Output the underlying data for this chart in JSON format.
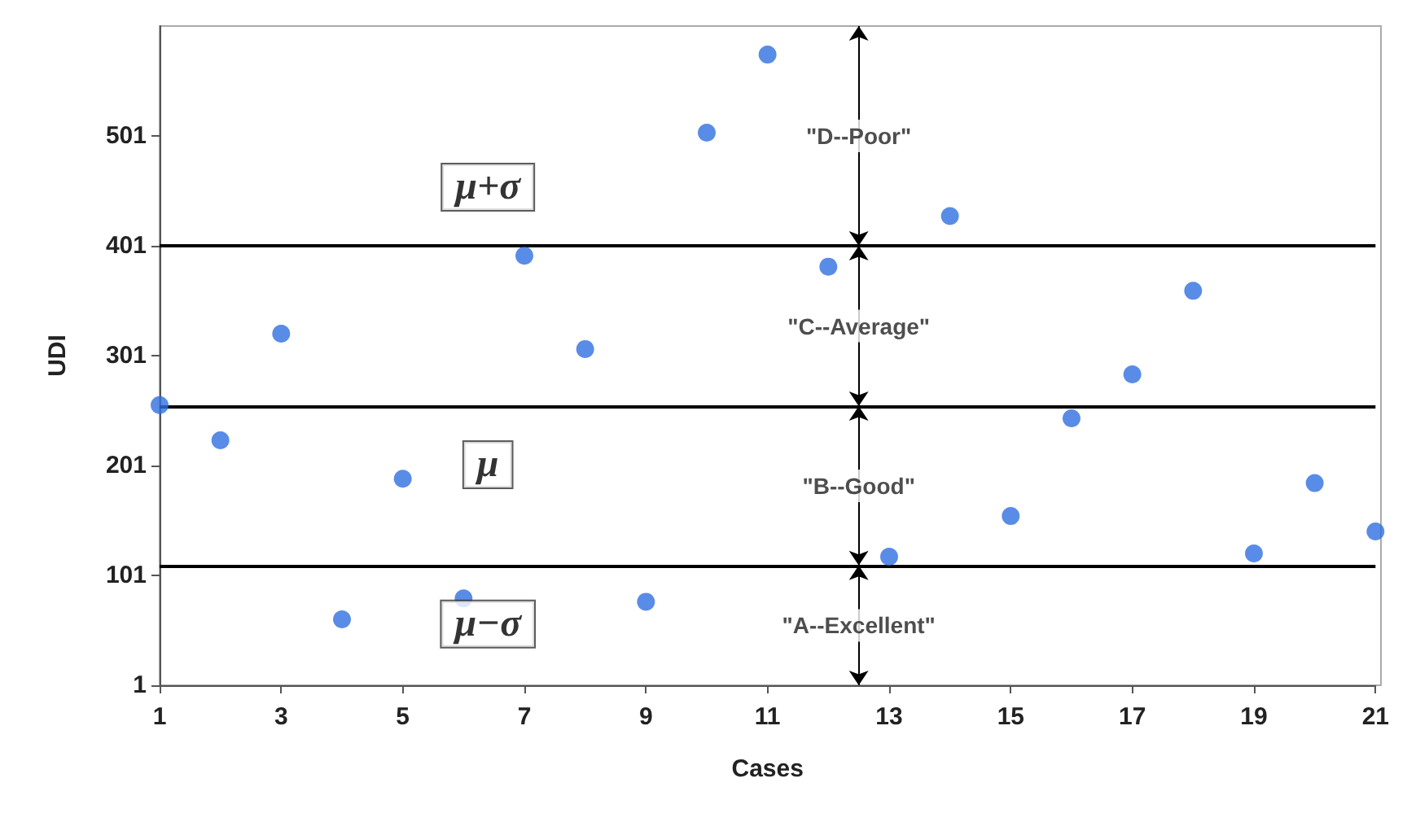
{
  "chart_data": {
    "type": "scatter",
    "xlabel": "Cases",
    "ylabel": "UDI",
    "x": [
      1,
      2,
      3,
      4,
      5,
      6,
      7,
      8,
      9,
      10,
      11,
      12,
      13,
      14,
      15,
      16,
      17,
      18,
      19,
      20,
      21
    ],
    "series": [
      {
        "color": "#2f6fe0",
        "values": [
          256,
          224,
          321,
          61,
          189,
          80,
          392,
          307,
          77,
          504,
          575,
          382,
          118,
          428,
          155,
          244,
          284,
          360,
          121,
          185,
          141
        ]
      }
    ],
    "xlim": [
      1,
      21
    ],
    "xticks": [
      1,
      3,
      5,
      7,
      9,
      11,
      13,
      15,
      17,
      19,
      21
    ],
    "ylim": [
      1,
      601
    ],
    "yticks": [
      1,
      101,
      201,
      301,
      401,
      501
    ],
    "grid": false,
    "marker": "circle",
    "ref_lines": [
      {
        "axis": "y",
        "value": 401,
        "color": "#000000",
        "label": "μ+σ"
      },
      {
        "axis": "y",
        "value": 255,
        "color": "#000000",
        "label": "μ"
      },
      {
        "axis": "y",
        "value": 110,
        "color": "#000000",
        "label": "μ−σ"
      }
    ],
    "annotations": [
      "\"D--Poor\"",
      "\"C--Average\"",
      "\"B--Good\"",
      "\"A--Excellent\""
    ]
  }
}
